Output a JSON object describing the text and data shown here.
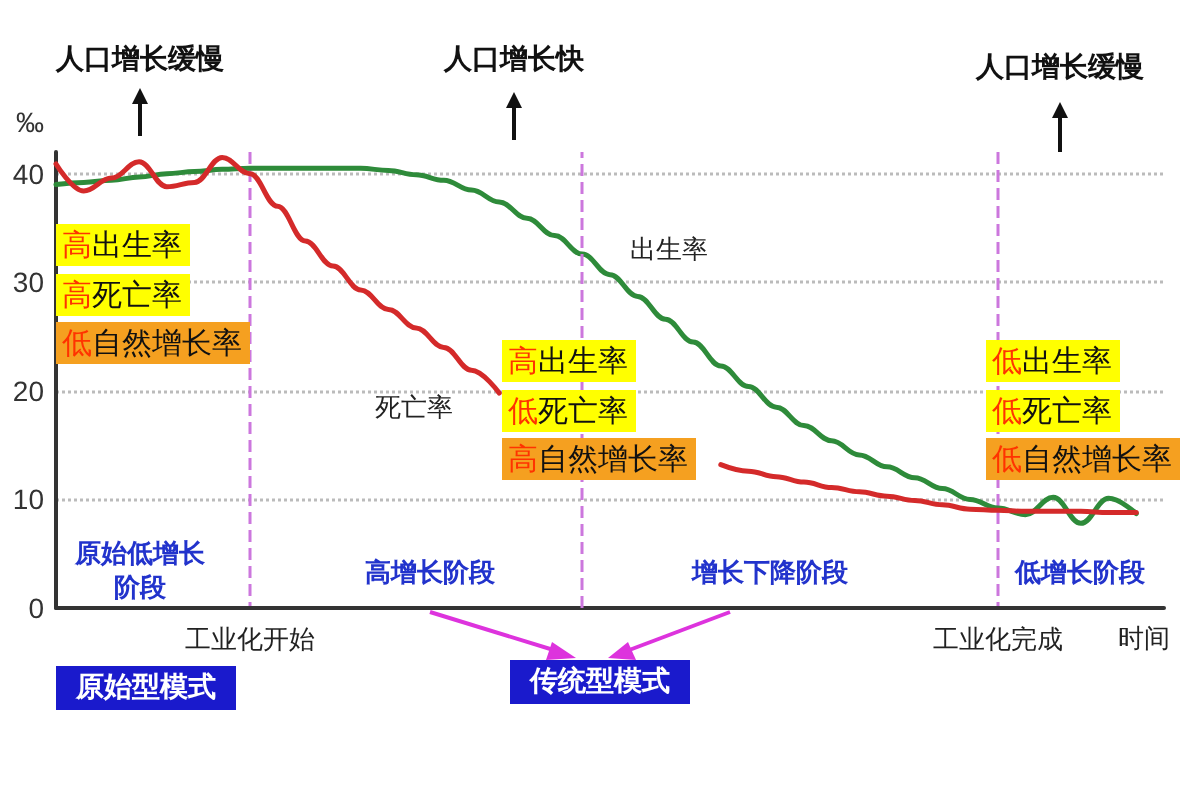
{
  "chart_data": {
    "type": "line",
    "ylabel": "‰",
    "xlabel": "时间",
    "categories": [
      null,
      null,
      null,
      null,
      null,
      null,
      null,
      "工业化开始",
      null,
      null,
      null,
      null,
      null,
      null,
      null,
      null,
      null,
      null,
      null,
      null,
      null,
      null,
      null,
      null,
      null,
      null,
      null,
      null,
      null,
      null,
      null,
      null,
      null,
      null,
      "工业化完成",
      null,
      null,
      null,
      null,
      null,
      null
    ],
    "ylim": [
      0,
      42
    ],
    "yticks": [
      0,
      10,
      20,
      30,
      40
    ],
    "grid": true,
    "marker": "none",
    "line_style": "solid",
    "series": [
      {
        "name": "出生率",
        "color": "#2e8b3a",
        "values": [
          39,
          39.2,
          39.4,
          39.7,
          40,
          40.2,
          40.4,
          40.5,
          40.5,
          40.5,
          40.5,
          40.5,
          40.3,
          39.9,
          39.4,
          38.5,
          37.4,
          35.9,
          34.3,
          32.6,
          30.7,
          28.7,
          26.6,
          24.5,
          22.3,
          20.4,
          18.5,
          16.8,
          15.4,
          14.1,
          13,
          12,
          11,
          10,
          9.2,
          8.6,
          10.2,
          7.8,
          10.1,
          8.7,
          null
        ]
      },
      {
        "name": "死亡率",
        "color": "#d42a2a",
        "values": [
          40.9,
          38.4,
          39.6,
          41.1,
          38.8,
          39.2,
          41.5,
          40,
          37,
          33.8,
          31.5,
          29.3,
          27.5,
          25.8,
          24,
          21.9,
          19.8,
          null,
          null,
          null,
          null,
          null,
          null,
          null,
          13.2,
          12.6,
          12.1,
          11.6,
          11.1,
          10.7,
          10.3,
          9.9,
          9.5,
          9.1,
          9,
          8.9,
          8.9,
          8.9,
          8.8,
          8.8,
          null
        ]
      }
    ],
    "annotations": [
      "人口增长缓慢",
      "人口增长快",
      "人口增长缓慢",
      "高出生率",
      "高死亡率",
      "低自然增长率",
      "高出生率",
      "低死亡率",
      "高自然增长率",
      "低出生率",
      "低死亡率",
      "低自然增长率",
      "原始低增长阶段",
      "高增长阶段",
      "增长下降阶段",
      "低增长阶段",
      "原始型模式",
      "传统型模式"
    ]
  }
}
